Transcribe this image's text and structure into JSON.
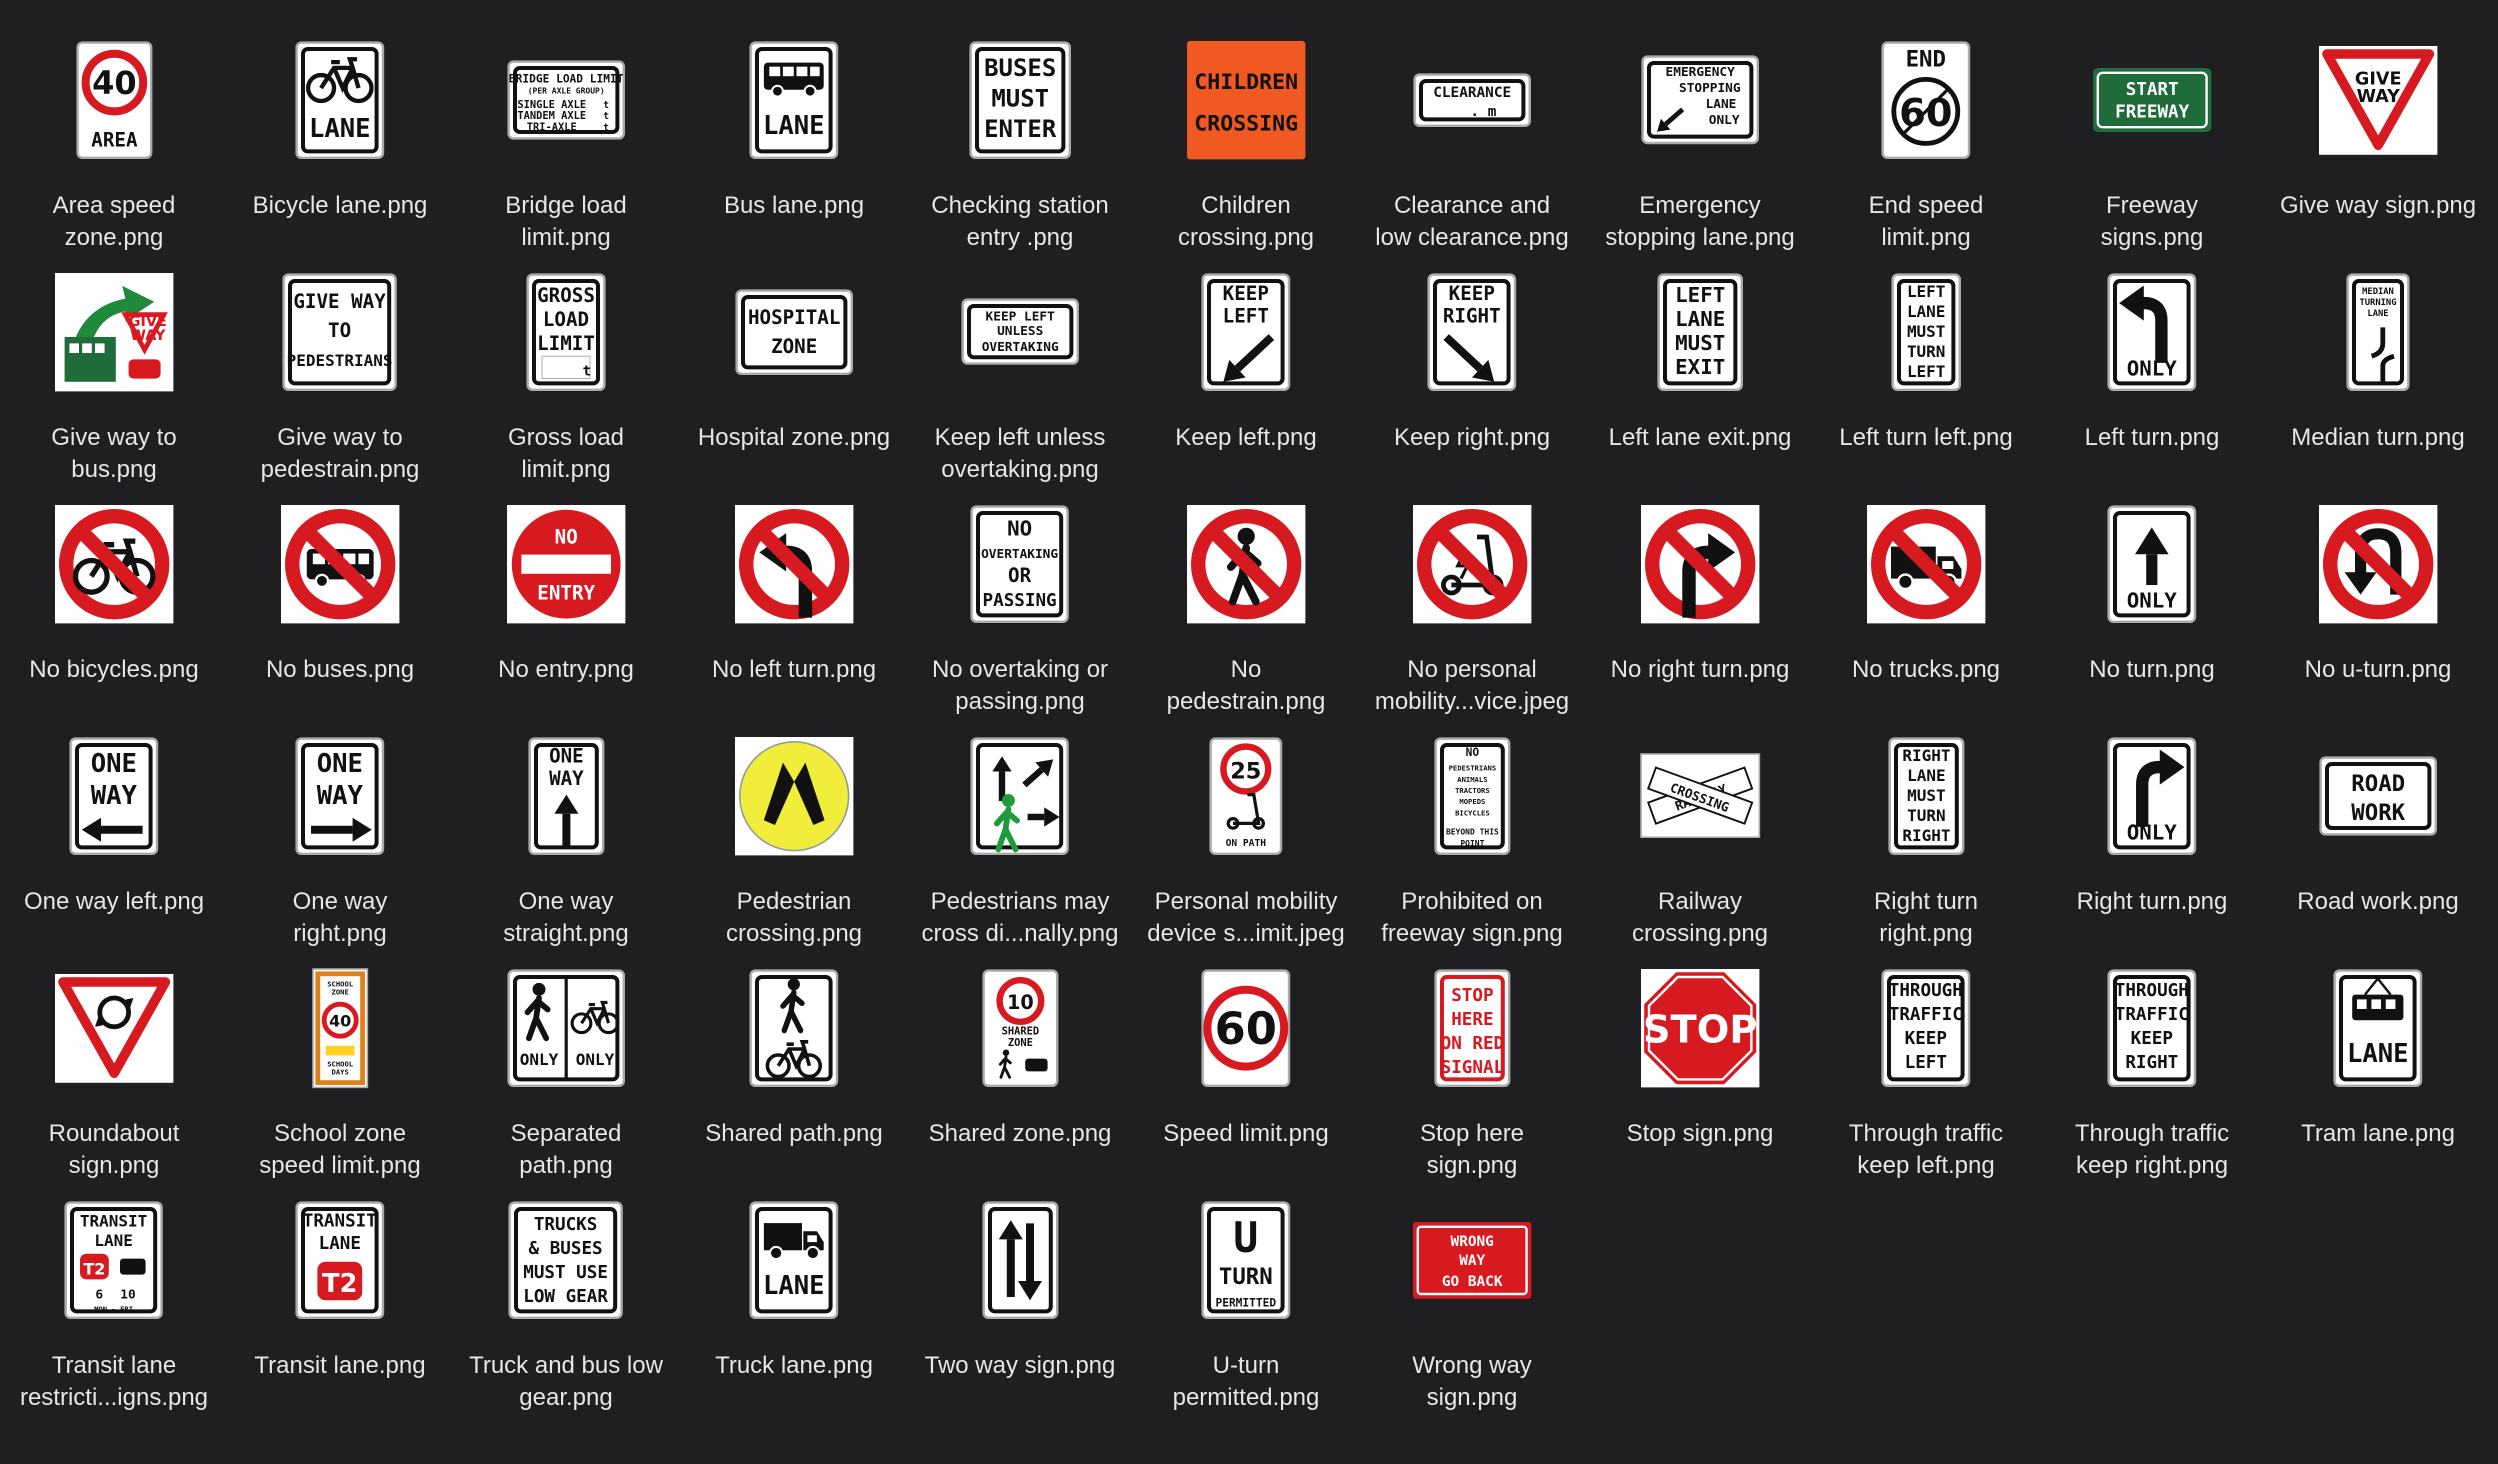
{
  "files": [
    {
      "name": "Area speed zone.png",
      "lines": [
        "Area speed",
        "zone.png"
      ],
      "kind": "area_speed",
      "texts": [
        "40",
        "AREA"
      ]
    },
    {
      "name": "Bicycle lane.png",
      "lines": [
        "Bicycle lane.png"
      ],
      "kind": "bicycle_lane",
      "texts": [
        "LANE"
      ]
    },
    {
      "name": "Bridge load limit.png",
      "lines": [
        "Bridge load",
        "limit.png"
      ],
      "kind": "bridge_load",
      "texts": [
        "BRIDGE LOAD LIMIT",
        "(PER AXLE GROUP)",
        "SINGLE AXLE",
        "TANDEM AXLE",
        "TRI-AXLE",
        "t"
      ]
    },
    {
      "name": "Bus lane.png",
      "lines": [
        "Bus lane.png"
      ],
      "kind": "bus_lane",
      "texts": [
        "LANE"
      ]
    },
    {
      "name": "Checking station entry .png",
      "lines": [
        "Checking station",
        "entry .png"
      ],
      "kind": "checking",
      "texts": [
        "BUSES",
        "MUST",
        "ENTER"
      ]
    },
    {
      "name": "Children crossing.png",
      "lines": [
        "Children",
        "crossing.png"
      ],
      "kind": "children",
      "texts": [
        "CHILDREN",
        "CROSSING"
      ]
    },
    {
      "name": "Clearance and low clearance.png",
      "lines": [
        "Clearance and",
        "low clearance.png"
      ],
      "kind": "clearance",
      "texts": [
        "CLEARANCE",
        ". m"
      ]
    },
    {
      "name": "Emergency stopping lane.png",
      "lines": [
        "Emergency",
        "stopping lane.png"
      ],
      "kind": "emergency",
      "texts": [
        "EMERGENCY",
        "STOPPING",
        "LANE",
        "ONLY"
      ]
    },
    {
      "name": "End speed limit.png",
      "lines": [
        "End speed",
        "limit.png"
      ],
      "kind": "end_speed",
      "texts": [
        "END",
        "60"
      ]
    },
    {
      "name": "Freeway signs.png",
      "lines": [
        "Freeway",
        "signs.png"
      ],
      "kind": "freeway",
      "texts": [
        "START",
        "FREEWAY"
      ]
    },
    {
      "name": "Give way sign.png",
      "lines": [
        "Give way sign.png"
      ],
      "kind": "give_way",
      "texts": [
        "GIVE",
        "WAY"
      ]
    },
    {
      "name": "Give way to bus.png",
      "lines": [
        "Give way to",
        "bus.png"
      ],
      "kind": "give_way_bus",
      "texts": [
        "GIVE",
        "WAY"
      ]
    },
    {
      "name": "Give way to pedestrain.png",
      "lines": [
        "Give way to",
        "pedestrain.png"
      ],
      "kind": "give_way_ped",
      "texts": [
        "GIVE WAY",
        "TO",
        "PEDESTRIANS"
      ]
    },
    {
      "name": "Gross load limit.png",
      "lines": [
        "Gross load",
        "limit.png"
      ],
      "kind": "gross_load",
      "texts": [
        "GROSS",
        "LOAD",
        "LIMIT",
        "t"
      ]
    },
    {
      "name": "Hospital zone.png",
      "lines": [
        "Hospital zone.png"
      ],
      "kind": "hospital",
      "texts": [
        "HOSPITAL",
        "ZONE"
      ]
    },
    {
      "name": "Keep left unless overtaking.png",
      "lines": [
        "Keep left unless",
        "overtaking.png"
      ],
      "kind": "keep_left_unless",
      "texts": [
        "KEEP LEFT",
        "UNLESS",
        "OVERTAKING"
      ]
    },
    {
      "name": "Keep left.png",
      "lines": [
        "Keep left.png"
      ],
      "kind": "keep_left",
      "texts": [
        "KEEP",
        "LEFT"
      ]
    },
    {
      "name": "Keep right.png",
      "lines": [
        "Keep right.png"
      ],
      "kind": "keep_right",
      "texts": [
        "KEEP",
        "RIGHT"
      ]
    },
    {
      "name": "Left lane exit.png",
      "lines": [
        "Left lane exit.png"
      ],
      "kind": "left_lane_exit",
      "texts": [
        "LEFT",
        "LANE",
        "MUST",
        "EXIT"
      ]
    },
    {
      "name": "Left turn left.png",
      "lines": [
        "Left turn left.png"
      ],
      "kind": "left_turn_left",
      "texts": [
        "LEFT",
        "LANE",
        "MUST",
        "TURN",
        "LEFT"
      ]
    },
    {
      "name": "Left turn.png",
      "lines": [
        "Left turn.png"
      ],
      "kind": "left_turn",
      "texts": [
        "ONLY"
      ]
    },
    {
      "name": "Median turn.png",
      "lines": [
        "Median turn.png"
      ],
      "kind": "median_turn",
      "texts": [
        "MEDIAN",
        "TURNING",
        "LANE"
      ]
    },
    {
      "name": "No bicycles.png",
      "lines": [
        "No bicycles.png"
      ],
      "kind": "no_bicycles",
      "texts": []
    },
    {
      "name": "No buses.png",
      "lines": [
        "No buses.png"
      ],
      "kind": "no_buses",
      "texts": []
    },
    {
      "name": "No entry.png",
      "lines": [
        "No entry.png"
      ],
      "kind": "no_entry",
      "texts": [
        "NO",
        "ENTRY"
      ]
    },
    {
      "name": "No left turn.png",
      "lines": [
        "No left turn.png"
      ],
      "kind": "no_left_turn",
      "texts": []
    },
    {
      "name": "No overtaking or passing.png",
      "lines": [
        "No overtaking or",
        "passing.png"
      ],
      "kind": "no_overtaking",
      "texts": [
        "NO",
        "OVERTAKING",
        "OR",
        "PASSING"
      ]
    },
    {
      "name": "No pedestrain.png",
      "lines": [
        "No",
        "pedestrain.png"
      ],
      "kind": "no_pedestrian",
      "texts": []
    },
    {
      "name": "No personal mobility...vice.jpeg",
      "lines": [
        "No personal",
        "mobility...vice.jpeg"
      ],
      "kind": "no_pmd",
      "texts": []
    },
    {
      "name": "No right turn.png",
      "lines": [
        "No right turn.png"
      ],
      "kind": "no_right_turn",
      "texts": []
    },
    {
      "name": "No trucks.png",
      "lines": [
        "No trucks.png"
      ],
      "kind": "no_trucks",
      "texts": []
    },
    {
      "name": "No turn.png",
      "lines": [
        "No turn.png"
      ],
      "kind": "no_turn",
      "texts": [
        "ONLY"
      ]
    },
    {
      "name": "No u-turn.png",
      "lines": [
        "No u-turn.png"
      ],
      "kind": "no_uturn",
      "texts": []
    },
    {
      "name": "One way left.png",
      "lines": [
        "One way left.png"
      ],
      "kind": "one_way_left",
      "texts": [
        "ONE",
        "WAY"
      ]
    },
    {
      "name": "One way right.png",
      "lines": [
        "One way",
        "right.png"
      ],
      "kind": "one_way_right",
      "texts": [
        "ONE",
        "WAY"
      ]
    },
    {
      "name": "One way straight.png",
      "lines": [
        "One way",
        "straight.png"
      ],
      "kind": "one_way_straight",
      "texts": [
        "ONE",
        "WAY"
      ]
    },
    {
      "name": "Pedestrian crossing.png",
      "lines": [
        "Pedestrian",
        "crossing.png"
      ],
      "kind": "ped_crossing",
      "texts": []
    },
    {
      "name": "Pedestrians may cross di...nally.png",
      "lines": [
        "Pedestrians may",
        "cross di...nally.png"
      ],
      "kind": "ped_diag",
      "texts": []
    },
    {
      "name": "Personal mobility device s...imit.jpeg",
      "lines": [
        "Personal mobility",
        "device s...imit.jpeg"
      ],
      "kind": "pmd_speed",
      "texts": [
        "25",
        "ON PATH"
      ]
    },
    {
      "name": "Prohibited on freeway sign.png",
      "lines": [
        "Prohibited on",
        "freeway sign.png"
      ],
      "kind": "prohibited",
      "texts": [
        "NO",
        "PEDESTRIANS",
        "ANIMALS",
        "TRACTORS",
        "MOPEDS",
        "BICYCLES",
        "BEYOND THIS",
        "POINT"
      ]
    },
    {
      "name": "Railway crossing.png",
      "lines": [
        "Railway",
        "crossing.png"
      ],
      "kind": "railway",
      "texts": [
        "RAILWAY",
        "CROSSING"
      ]
    },
    {
      "name": "Right turn right.png",
      "lines": [
        "Right turn",
        "right.png"
      ],
      "kind": "right_turn_right",
      "texts": [
        "RIGHT",
        "LANE",
        "MUST",
        "TURN",
        "RIGHT"
      ]
    },
    {
      "name": "Right turn.png",
      "lines": [
        "Right turn.png"
      ],
      "kind": "right_turn",
      "texts": [
        "ONLY"
      ]
    },
    {
      "name": "Road work.png",
      "lines": [
        "Road work.png"
      ],
      "kind": "road_work",
      "texts": [
        "ROAD",
        "WORK"
      ]
    },
    {
      "name": "Roundabout sign.png",
      "lines": [
        "Roundabout",
        "sign.png"
      ],
      "kind": "roundabout",
      "texts": []
    },
    {
      "name": "School zone speed limit.png",
      "lines": [
        "School zone",
        "speed limit.png"
      ],
      "kind": "school_zone",
      "texts": [
        "SCHOOL",
        "ZONE",
        "40",
        "SCHOOL",
        "DAYS"
      ]
    },
    {
      "name": "Separated path.png",
      "lines": [
        "Separated",
        "path.png"
      ],
      "kind": "separated",
      "texts": [
        "ONLY",
        "ONLY"
      ]
    },
    {
      "name": "Shared path.png",
      "lines": [
        "Shared path.png"
      ],
      "kind": "shared_path",
      "texts": []
    },
    {
      "name": "Shared zone.png",
      "lines": [
        "Shared zone.png"
      ],
      "kind": "shared_zone",
      "texts": [
        "10",
        "SHARED",
        "ZONE"
      ]
    },
    {
      "name": "Speed limit.png",
      "lines": [
        "Speed limit.png"
      ],
      "kind": "speed_limit",
      "texts": [
        "60"
      ]
    },
    {
      "name": "Stop here sign.png",
      "lines": [
        "Stop here",
        "sign.png"
      ],
      "kind": "stop_here",
      "texts": [
        "STOP",
        "HERE",
        "ON RED",
        "SIGNAL"
      ]
    },
    {
      "name": "Stop sign.png",
      "lines": [
        "Stop sign.png"
      ],
      "kind": "stop",
      "texts": [
        "STOP"
      ]
    },
    {
      "name": "Through traffic keep left.png",
      "lines": [
        "Through traffic",
        "keep left.png"
      ],
      "kind": "through_left",
      "texts": [
        "THROUGH",
        "TRAFFIC",
        "KEEP",
        "LEFT"
      ]
    },
    {
      "name": "Through traffic keep right.png",
      "lines": [
        "Through traffic",
        "keep right.png"
      ],
      "kind": "through_right",
      "texts": [
        "THROUGH",
        "TRAFFIC",
        "KEEP",
        "RIGHT"
      ]
    },
    {
      "name": "Tram lane.png",
      "lines": [
        "Tram lane.png"
      ],
      "kind": "tram_lane",
      "texts": [
        "LANE"
      ]
    },
    {
      "name": "Transit lane restricti...igns.png",
      "lines": [
        "Transit lane",
        "restricti...igns.png"
      ],
      "kind": "transit_restrict",
      "texts": [
        "TRANSIT",
        "LANE",
        "T2",
        "6",
        "10",
        "MON - FRI"
      ]
    },
    {
      "name": "Transit lane.png",
      "lines": [
        "Transit lane.png"
      ],
      "kind": "transit_lane",
      "texts": [
        "TRANSIT",
        "LANE",
        "T2"
      ]
    },
    {
      "name": "Truck and bus low gear.png",
      "lines": [
        "Truck and bus low",
        "gear.png"
      ],
      "kind": "low_gear",
      "texts": [
        "TRUCKS",
        "& BUSES",
        "MUST USE",
        "LOW GEAR"
      ]
    },
    {
      "name": "Truck lane.png",
      "lines": [
        "Truck lane.png"
      ],
      "kind": "truck_lane",
      "texts": [
        "LANE"
      ]
    },
    {
      "name": "Two way sign.png",
      "lines": [
        "Two way sign.png"
      ],
      "kind": "two_way",
      "texts": []
    },
    {
      "name": "U-turn permitted.png",
      "lines": [
        "U-turn",
        "permitted.png"
      ],
      "kind": "uturn_permitted",
      "texts": [
        "U",
        "TURN",
        "PERMITTED"
      ]
    },
    {
      "name": "Wrong way sign.png",
      "lines": [
        "Wrong way",
        "sign.png"
      ],
      "kind": "wrong_way",
      "texts": [
        "WRONG",
        "WAY",
        "GO BACK"
      ]
    }
  ]
}
